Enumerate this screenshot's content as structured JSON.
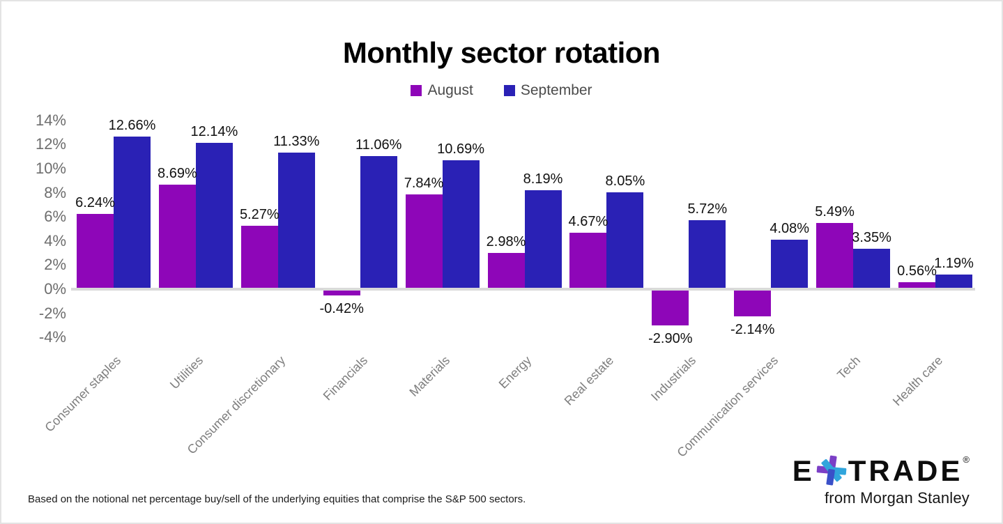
{
  "title": "Monthly sector rotation",
  "footnote": "Based on the notional net percentage buy/sell of the underlying equities that comprise the S&P 500 sectors.",
  "colors": {
    "august": "#8E06B8",
    "september": "#2A21B5",
    "axis_text": "#6d6d6d",
    "category_text": "#7e7e7e",
    "baseline": "#d9d9d9"
  },
  "chart_data": {
    "type": "bar",
    "title": "Monthly sector rotation",
    "categories": [
      "Consumer staples",
      "Utilities",
      "Consumer discretionary",
      "Financials",
      "Materials",
      "Energy",
      "Real estate",
      "Industrials",
      "Communication services",
      "Tech",
      "Health care"
    ],
    "series": [
      {
        "name": "August",
        "color": "#8E06B8",
        "values": [
          6.24,
          8.69,
          5.27,
          -0.42,
          7.84,
          2.98,
          4.67,
          -2.9,
          -2.14,
          5.49,
          0.56
        ]
      },
      {
        "name": "September",
        "color": "#2A21B5",
        "values": [
          12.66,
          12.14,
          11.33,
          11.06,
          10.69,
          8.19,
          8.05,
          5.72,
          4.08,
          3.35,
          1.19
        ]
      }
    ],
    "value_labels": [
      [
        "6.24%",
        "8.69%",
        "5.27%",
        "-0.42%",
        "7.84%",
        "2.98%",
        "4.67%",
        "-2.90%",
        "-2.14%",
        "5.49%",
        "0.56%"
      ],
      [
        "12.66%",
        "12.14%",
        "11.33%",
        "11.06%",
        "10.69%",
        "8.19%",
        "8.05%",
        "5.72%",
        "4.08%",
        "3.35%",
        "1.19%"
      ]
    ],
    "y_tick_values": [
      14,
      12,
      10,
      8,
      6,
      4,
      2,
      0,
      -2,
      -4
    ],
    "y_tick_labels": [
      "14%",
      "12%",
      "10%",
      "8%",
      "6%",
      "4%",
      "2%",
      "0%",
      "-2%",
      "-4%"
    ],
    "ylim": [
      -4,
      14
    ],
    "grid": false,
    "legend_position": "top"
  },
  "logo": {
    "brand_left": "E",
    "brand_right": "TRADE",
    "registered": "®",
    "tagline": "from Morgan Stanley",
    "star_purple": "#7B3FC6",
    "star_cyan": "#31A5DC",
    "star_blue": "#3A50C8"
  }
}
